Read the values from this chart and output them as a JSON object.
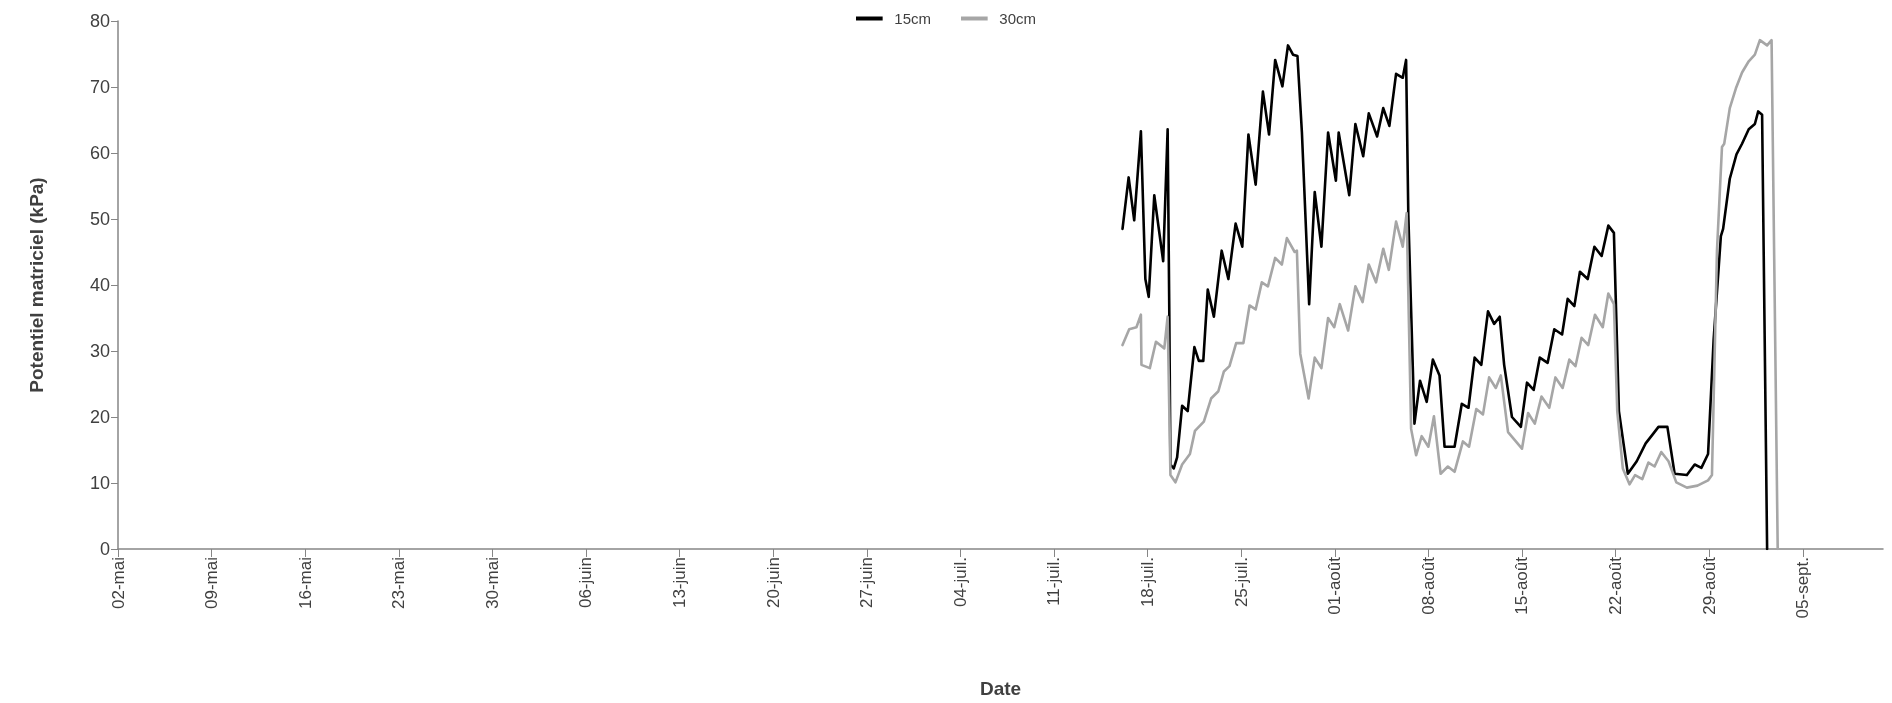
{
  "chart_data": {
    "type": "line",
    "xlabel": "Date",
    "ylabel": "Potentiel matriciel (kPa)",
    "ylim": [
      0,
      80
    ],
    "yticks": [
      0,
      10,
      20,
      30,
      40,
      50,
      60,
      70,
      80
    ],
    "xlim": [
      "--05-02",
      "--09-11"
    ],
    "xticks": [
      {
        "value": "--05-02",
        "label": "02-mai"
      },
      {
        "value": "--05-09",
        "label": "09-mai"
      },
      {
        "value": "--05-16",
        "label": "16-mai"
      },
      {
        "value": "--05-23",
        "label": "23-mai"
      },
      {
        "value": "--05-30",
        "label": "30-mai"
      },
      {
        "value": "--06-06",
        "label": "06-juin"
      },
      {
        "value": "--06-13",
        "label": "13-juin"
      },
      {
        "value": "--06-20",
        "label": "20-juin"
      },
      {
        "value": "--06-27",
        "label": "27-juin"
      },
      {
        "value": "--07-04",
        "label": "04-juil."
      },
      {
        "value": "--07-11",
        "label": "11-juil."
      },
      {
        "value": "--07-18",
        "label": "18-juil."
      },
      {
        "value": "--07-25",
        "label": "25-juil."
      },
      {
        "value": "--08-01",
        "label": "01-août"
      },
      {
        "value": "--08-08",
        "label": "08-août"
      },
      {
        "value": "--08-15",
        "label": "15-août"
      },
      {
        "value": "--08-22",
        "label": "22-août"
      },
      {
        "value": "--08-29",
        "label": "29-août"
      },
      {
        "value": "--09-05",
        "label": "05-sept."
      }
    ],
    "legend": "top",
    "grid": false,
    "marker": "none",
    "line_style": "solid",
    "series": [
      {
        "name": "15cm",
        "color": "#000000",
        "x": [
          "--07-16T03:00",
          "--07-16T14:00",
          "--07-17T00:00",
          "--07-17T12:00",
          "--07-17T20:00",
          "--07-18T02:00",
          "--07-18T12:00",
          "--07-19T04:00",
          "--07-19T12:00",
          "--07-19T15:00",
          "--07-19T17:00",
          "--07-19T23:00",
          "--07-20T05:00",
          "--07-20T14:00",
          "--07-21T00:00",
          "--07-21T12:00",
          "--07-21T20:00",
          "--07-22T04:00",
          "--07-22T12:00",
          "--07-22T23:00",
          "--07-23T13:00",
          "--07-24T01:00",
          "--07-24T14:00",
          "--07-25T02:00",
          "--07-25T13:00",
          "--07-26T02:00",
          "--07-26T15:00",
          "--07-27T02:00",
          "--07-27T13:00",
          "--07-28T02:00",
          "--07-28T12:00",
          "--07-28T21:00",
          "--07-29T05:00",
          "--07-29T13:00",
          "--07-30T02:00",
          "--07-30T12:00",
          "--07-31T00:00",
          "--07-31T12:00",
          "--08-01T02:00",
          "--08-01T07:00",
          "--08-02T02:00",
          "--08-02T13:00",
          "--08-03T03:00",
          "--08-03T13:00",
          "--08-04T04:00",
          "--08-04T15:00",
          "--08-05T02:00",
          "--08-05T14:00",
          "--08-06T02:00",
          "--08-06T08:00",
          "--08-06T12:00",
          "--08-06T23:00",
          "--08-07T09:00",
          "--08-07T21:00",
          "--08-08T08:00",
          "--08-08T20:00",
          "--08-09T05:00",
          "--08-09T23:00",
          "--08-10T12:00",
          "--08-11T00:00",
          "--08-11T11:00",
          "--08-11T23:00",
          "--08-12T11:00",
          "--08-12T22:00",
          "--08-13T08:00",
          "--08-13T16:00",
          "--08-14T06:00",
          "--08-14T22:00",
          "--08-15T09:00",
          "--08-15T21:00",
          "--08-16T08:00",
          "--08-16T22:00",
          "--08-17T10:00",
          "--08-18T00:00",
          "--08-18T10:00",
          "--08-18T22:00",
          "--08-19T08:00",
          "--08-19T22:00",
          "--08-20T10:00",
          "--08-20T23:00",
          "--08-21T11:00",
          "--08-21T21:00",
          "--08-22T06:00",
          "--08-22T22:00",
          "--08-23T14:00",
          "--08-24T06:00",
          "--08-24T19:00",
          "--08-25T05:00",
          "--08-25T21:00",
          "--08-26T10:00",
          "--08-27T08:00",
          "--08-27T22:00",
          "--08-28T10:00",
          "--08-28T22:00",
          "--08-29T08:00",
          "--08-29T21:00",
          "--08-30T01:00",
          "--08-30T13:00",
          "--08-31T01:00",
          "--08-31T11:00",
          "--08-31T23:00",
          "--09-01T10:00",
          "--09-01T16:00",
          "--09-01T23:00",
          "--09-02T08:00"
        ],
        "values": [
          48.5,
          56.3,
          49.8,
          63.3,
          40.9,
          38.2,
          53.6,
          43.6,
          63.6,
          35.5,
          12.8,
          12.2,
          13.9,
          21.7,
          20.9,
          30.6,
          28.5,
          28.5,
          39.3,
          35.2,
          45.2,
          40.9,
          49.3,
          45.8,
          62.8,
          55.2,
          69.3,
          62.8,
          74.1,
          70.1,
          76.3,
          74.9,
          74.7,
          63.1,
          37.1,
          54.1,
          45.8,
          63.1,
          55.8,
          63.1,
          53.6,
          64.4,
          59.5,
          66.0,
          62.5,
          66.8,
          64.1,
          72.0,
          71.4,
          74.1,
          50.6,
          19.0,
          25.5,
          22.3,
          28.7,
          26.3,
          15.5,
          15.5,
          22.0,
          21.4,
          29.0,
          27.9,
          36.0,
          34.1,
          35.2,
          27.9,
          20.0,
          18.5,
          25.2,
          24.1,
          29.0,
          28.2,
          33.3,
          32.5,
          37.9,
          36.8,
          42.0,
          40.9,
          45.8,
          44.4,
          49.0,
          47.9,
          20.9,
          11.4,
          13.3,
          16.0,
          17.4,
          18.5,
          18.5,
          11.4,
          11.2,
          12.8,
          12.3,
          14.4,
          31.7,
          47.4,
          48.5,
          56.1,
          59.8,
          61.4,
          63.6,
          64.4,
          66.3,
          65.8,
          0
        ]
      },
      {
        "name": "30cm",
        "color": "#a6a6a6",
        "x": [
          "--07-16T03:00",
          "--07-16T15:00",
          "--07-17T04:00",
          "--07-17T12:00",
          "--07-17T13:00",
          "--07-18T04:00",
          "--07-18T15:00",
          "--07-19T06:00",
          "--07-19T12:00",
          "--07-19T17:00",
          "--07-20T02:00",
          "--07-20T14:00",
          "--07-21T04:00",
          "--07-21T13:00",
          "--07-22T05:00",
          "--07-22T18:00",
          "--07-23T07:00",
          "--07-23T17:00",
          "--07-24T03:00",
          "--07-24T15:00",
          "--07-25T04:00",
          "--07-25T15:00",
          "--07-26T02:00",
          "--07-26T13:00",
          "--07-27T00:00",
          "--07-27T13:00",
          "--07-28T01:00",
          "--07-28T10:00",
          "--07-29T00:00",
          "--07-29T04:00",
          "--07-29T10:00",
          "--07-30T01:00",
          "--07-30T12:00",
          "--07-31T00:00",
          "--07-31T12:00",
          "--07-31T23:00",
          "--08-01T09:00",
          "--08-02T00:00",
          "--08-02T13:00",
          "--08-03T02:00",
          "--08-03T13:00",
          "--08-04T02:00",
          "--08-04T15:00",
          "--08-05T01:00",
          "--08-05T14:00",
          "--08-06T02:00",
          "--08-06T09:00",
          "--08-06T17:00",
          "--08-07T02:00",
          "--08-07T12:00",
          "--08-08T00:00",
          "--08-08T10:00",
          "--08-08T22:00",
          "--08-09T11:00",
          "--08-09T23:00",
          "--08-10T14:00",
          "--08-11T01:00",
          "--08-11T14:00",
          "--08-12T02:00",
          "--08-12T13:00",
          "--08-13T01:00",
          "--08-13T10:00",
          "--08-13T23:00",
          "--08-15T00:00",
          "--08-15T11:00",
          "--08-15T23:00",
          "--08-16T11:00",
          "--08-17T01:00",
          "--08-17T12:00",
          "--08-18T01:00",
          "--08-18T13:00",
          "--08-19T00:00",
          "--08-19T11:00",
          "--08-19T23:00",
          "--08-20T11:00",
          "--08-21T01:00",
          "--08-21T11:00",
          "--08-21T21:00",
          "--08-22T03:00",
          "--08-22T13:00",
          "--08-23T01:00",
          "--08-23T11:00",
          "--08-24T00:00",
          "--08-24T11:00",
          "--08-24T22:00",
          "--08-25T10:00",
          "--08-25T23:00",
          "--08-26T13:00",
          "--08-27T08:00",
          "--08-28T03:00",
          "--08-28T22:00",
          "--08-29T05:00",
          "--08-29T14:00",
          "--08-29T23:00",
          "--08-30T03:00",
          "--08-30T13:00",
          "--08-31T00:00",
          "--08-31T11:00",
          "--08-31T23:00",
          "--09-01T10:00",
          "--09-01T19:00",
          "--09-02T08:00",
          "--09-02T16:00",
          "--09-03T03:00"
        ],
        "values": [
          30.9,
          33.3,
          33.6,
          35.5,
          27.9,
          27.4,
          31.4,
          30.4,
          35.2,
          11.2,
          10.1,
          12.8,
          14.4,
          17.9,
          19.3,
          22.8,
          23.9,
          26.9,
          27.7,
          31.2,
          31.2,
          36.9,
          36.3,
          40.4,
          39.8,
          44.1,
          43.1,
          47.1,
          45.0,
          45.2,
          29.6,
          22.8,
          29.0,
          27.4,
          35.0,
          33.6,
          37.1,
          33.1,
          39.8,
          37.4,
          43.1,
          40.4,
          45.5,
          42.3,
          49.6,
          45.8,
          50.9,
          18.2,
          14.2,
          17.1,
          15.5,
          20.1,
          11.4,
          12.5,
          11.7,
          16.3,
          15.5,
          21.2,
          20.4,
          26.0,
          24.4,
          26.3,
          17.7,
          15.2,
          20.6,
          19.0,
          23.1,
          21.4,
          26.0,
          24.4,
          28.7,
          27.7,
          32.0,
          30.9,
          35.5,
          33.6,
          38.7,
          37.1,
          20.9,
          12.2,
          9.8,
          11.2,
          10.6,
          13.1,
          12.5,
          14.7,
          13.3,
          10.1,
          9.3,
          9.6,
          10.4,
          11.2,
          45.2,
          60.9,
          61.4,
          66.8,
          69.8,
          72.2,
          73.9,
          74.9,
          77.1,
          76.3,
          77.1,
          0
        ]
      }
    ]
  }
}
